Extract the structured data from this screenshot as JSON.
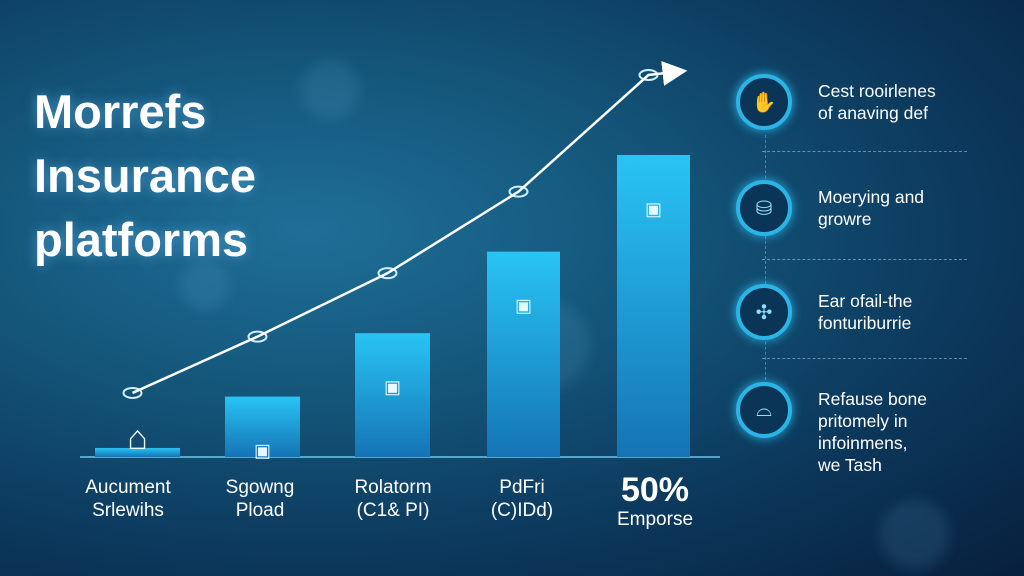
{
  "title": [
    "Morrefs",
    "Insurance",
    "platforms"
  ],
  "chart_data": {
    "type": "bar",
    "categories": [
      [
        "Aucument",
        "Srlewihs"
      ],
      [
        "Sgowng",
        "Pload"
      ],
      [
        "Rolatorm",
        "(C1& PI)"
      ],
      [
        "PdFri",
        "(C)IDd)"
      ],
      [
        "50%",
        "Emporse"
      ]
    ],
    "values": [
      3,
      20,
      41,
      68,
      100
    ],
    "trend_line": true,
    "colors": {
      "bar_top": "#29c4f4",
      "bar_bottom": "#1574b5",
      "line": "#ffffff"
    }
  },
  "bar_icons": [
    "house-icon",
    "briefcase-icon",
    "briefcase-icon",
    "briefcase-icon",
    "briefcase-icon"
  ],
  "side_items": [
    {
      "icon": "hand-icon",
      "lines": [
        "Cest rooirlenes",
        "of anaving def"
      ]
    },
    {
      "icon": "bag-icon",
      "lines": [
        "Moerying and",
        "growre"
      ]
    },
    {
      "icon": "network-icon",
      "lines": [
        "Ear ofail-the",
        "fonturiburrie"
      ]
    },
    {
      "icon": "dome-icon",
      "lines": [
        "Refause bone",
        "pritomely in",
        "infoinmens,",
        "we Tash"
      ]
    }
  ]
}
